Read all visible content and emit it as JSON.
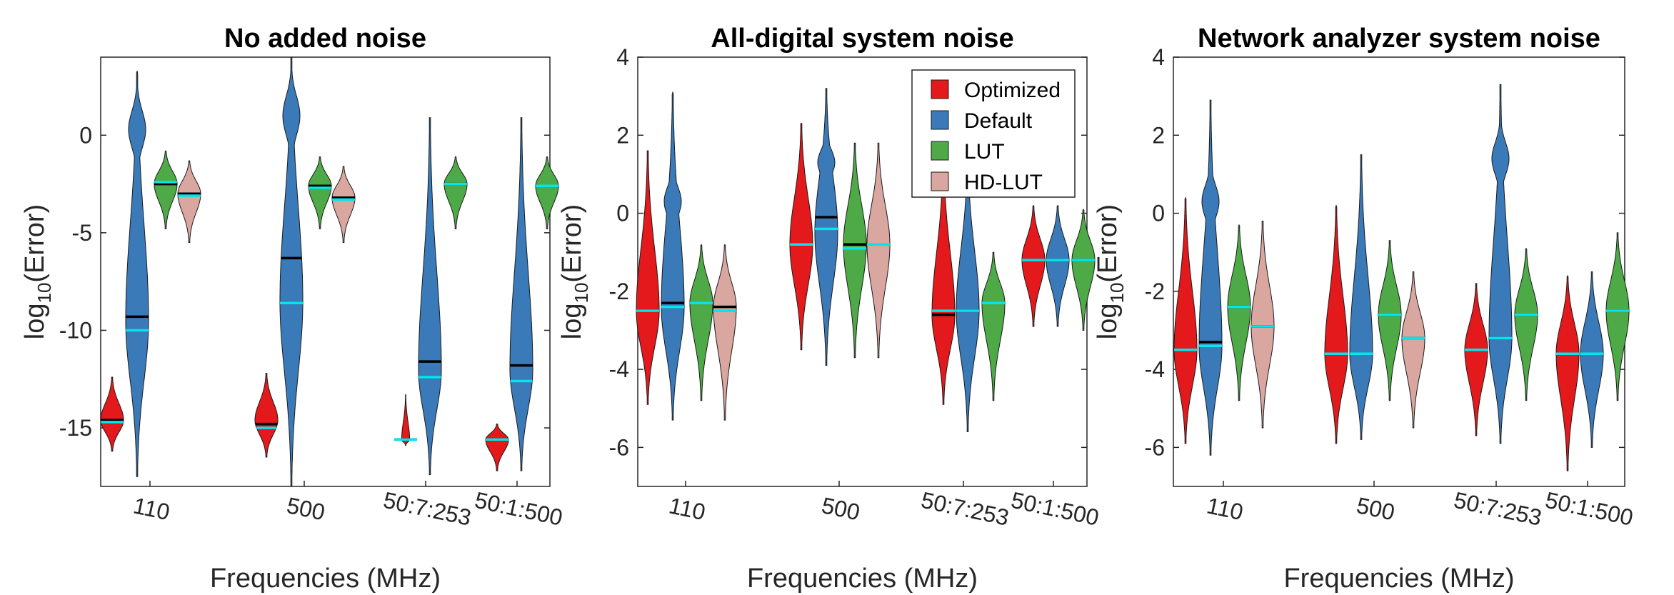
{
  "chart_data": [
    {
      "type": "violin",
      "title": "No added noise",
      "xlabel": "Frequencies (MHz)",
      "ylabel": "log10(Error)",
      "ylim": [
        -18,
        4
      ],
      "yticks": [
        0,
        -5,
        -10,
        -15
      ],
      "ytick_labels": [
        "0",
        "-5",
        "-10",
        "-15"
      ],
      "categories": [
        "110",
        "500",
        "50:7:253",
        "50:1:500"
      ],
      "colors": {
        "Optimized": "#e3191c",
        "Default": "#3a7ab8",
        "LUT": "#4daa47",
        "HD-LUT": "#d9a6a0"
      },
      "line_colors": {
        "mean": "#000000",
        "median": "#00e5ee"
      },
      "series": [
        {
          "name": "Optimized",
          "violins": [
            {
              "min": -16.2,
              "max": -12.4,
              "mode": -14.6,
              "mean": -14.6,
              "median": -14.7
            },
            {
              "min": -16.5,
              "max": -12.2,
              "mode": -14.6,
              "mean": -14.8,
              "median": -15.0
            },
            {
              "min": -15.9,
              "max": -13.3,
              "mode": -15.6,
              "mean": -15.6,
              "median": -15.6,
              "narrow": true
            },
            {
              "min": -17.2,
              "max": -14.8,
              "mode": -15.6,
              "mean": -15.6,
              "median": -15.6
            }
          ]
        },
        {
          "name": "Default",
          "violins": [
            {
              "min": -17.5,
              "max": 3.3,
              "mode": -9.5,
              "mean": -9.3,
              "median": -10.0,
              "secondary_peak": 0.3
            },
            {
              "min": -18.0,
              "max": 4.0,
              "mode": -8.5,
              "mean": -6.3,
              "median": -8.6,
              "secondary_peak": 1.0
            },
            {
              "min": -17.4,
              "max": 0.9,
              "mode": -12.0,
              "mean": -11.6,
              "median": -12.4
            },
            {
              "min": -17.2,
              "max": 0.9,
              "mode": -12.0,
              "mean": -11.8,
              "median": -12.6
            }
          ]
        },
        {
          "name": "LUT",
          "violins": [
            {
              "min": -4.8,
              "max": -0.8,
              "mode": -2.5,
              "mean": -2.5,
              "median": -2.4
            },
            {
              "min": -4.8,
              "max": -1.1,
              "mode": -2.6,
              "mean": -2.6,
              "median": -2.7
            },
            {
              "min": -4.8,
              "max": -1.1,
              "mode": -2.5,
              "mean": -2.5,
              "median": -2.5
            },
            {
              "min": -4.8,
              "max": -1.1,
              "mode": -2.6,
              "mean": -2.6,
              "median": -2.6
            }
          ]
        },
        {
          "name": "HD-LUT",
          "violins": [
            {
              "min": -5.5,
              "max": -1.3,
              "mode": -3.0,
              "mean": -3.0,
              "median": -3.1
            },
            {
              "min": -5.5,
              "max": -1.6,
              "mode": -3.2,
              "mean": -3.2,
              "median": -3.3
            },
            null,
            null
          ]
        }
      ]
    },
    {
      "type": "violin",
      "title": "All-digital system noise",
      "xlabel": "Frequencies (MHz)",
      "ylabel": "log10(Error)",
      "ylim": [
        -7,
        4
      ],
      "yticks": [
        4,
        2,
        0,
        -2,
        -4,
        -6
      ],
      "ytick_labels": [
        "4",
        "2",
        "0",
        "-2",
        "-4",
        "-6"
      ],
      "categories": [
        "110",
        "500",
        "50:7:253",
        "50:1:500"
      ],
      "legend": {
        "position": "top-right",
        "entries": [
          "Optimized",
          "Default",
          "LUT",
          "HD-LUT"
        ]
      },
      "series": [
        {
          "name": "Optimized",
          "violins": [
            {
              "min": -4.9,
              "max": 1.6,
              "mode": -2.5,
              "mean": -2.5,
              "median": -2.5
            },
            {
              "min": -3.5,
              "max": 2.3,
              "mode": -0.8,
              "mean": -0.8,
              "median": -0.8
            },
            {
              "min": -4.9,
              "max": 1.5,
              "mode": -2.6,
              "mean": -2.6,
              "median": -2.5
            },
            {
              "min": -2.9,
              "max": 0.2,
              "mode": -1.2,
              "mean": -1.2,
              "median": -1.2
            }
          ]
        },
        {
          "name": "Default",
          "violins": [
            {
              "min": -5.3,
              "max": 3.1,
              "mode": -2.4,
              "mean": -2.3,
              "median": -2.4,
              "secondary_peak": 0.3
            },
            {
              "min": -3.9,
              "max": 3.2,
              "mode": -0.5,
              "mean": -0.1,
              "median": -0.4,
              "secondary_peak": 1.3
            },
            {
              "min": -5.6,
              "max": 1.5,
              "mode": -2.5,
              "mean": -2.5,
              "median": -2.5
            },
            {
              "min": -2.9,
              "max": 0.2,
              "mode": -1.2,
              "mean": -1.2,
              "median": -1.2
            }
          ]
        },
        {
          "name": "LUT",
          "violins": [
            {
              "min": -4.8,
              "max": -0.8,
              "mode": -2.3,
              "mean": -2.3,
              "median": -2.3
            },
            {
              "min": -3.7,
              "max": 1.8,
              "mode": -0.8,
              "mean": -0.8,
              "median": -0.9
            },
            {
              "min": -4.8,
              "max": -1.0,
              "mode": -2.3,
              "mean": -2.3,
              "median": -2.3
            },
            {
              "min": -3.0,
              "max": 0.1,
              "mode": -1.2,
              "mean": -1.2,
              "median": -1.2
            }
          ]
        },
        {
          "name": "HD-LUT",
          "violins": [
            {
              "min": -5.3,
              "max": -0.8,
              "mode": -2.4,
              "mean": -2.4,
              "median": -2.5
            },
            {
              "min": -3.7,
              "max": 1.8,
              "mode": -0.8,
              "mean": -0.8,
              "median": -0.8
            },
            null,
            null
          ]
        }
      ]
    },
    {
      "type": "violin",
      "title": "Network analyzer system noise",
      "xlabel": "Frequencies (MHz)",
      "ylabel": "log10(Error)",
      "ylim": [
        -7,
        4
      ],
      "yticks": [
        4,
        2,
        0,
        -2,
        -4,
        -6
      ],
      "ytick_labels": [
        "4",
        "2",
        "0",
        "-2",
        "-4",
        "-6"
      ],
      "categories": [
        "110",
        "500",
        "50:7:253",
        "50:1:500"
      ],
      "series": [
        {
          "name": "Optimized",
          "violins": [
            {
              "min": -5.9,
              "max": 0.4,
              "mode": -3.5,
              "mean": -3.5,
              "median": -3.5
            },
            {
              "min": -5.9,
              "max": 0.2,
              "mode": -3.6,
              "mean": -3.6,
              "median": -3.6
            },
            {
              "min": -5.7,
              "max": -1.8,
              "mode": -3.5,
              "mean": -3.5,
              "median": -3.5
            },
            {
              "min": -6.6,
              "max": -1.6,
              "mode": -3.6,
              "mean": -3.6,
              "median": -3.6
            }
          ]
        },
        {
          "name": "Default",
          "violins": [
            {
              "min": -6.2,
              "max": 2.9,
              "mode": -3.4,
              "mean": -3.3,
              "median": -3.4,
              "secondary_peak": 0.3
            },
            {
              "min": -5.8,
              "max": 1.5,
              "mode": -3.6,
              "mean": -3.6,
              "median": -3.6
            },
            {
              "min": -5.9,
              "max": 3.3,
              "mode": -3.2,
              "mean": -3.2,
              "median": -3.2,
              "secondary_peak": 1.4
            },
            {
              "min": -6.0,
              "max": -1.5,
              "mode": -3.6,
              "mean": -3.6,
              "median": -3.6
            }
          ]
        },
        {
          "name": "LUT",
          "violins": [
            {
              "min": -4.8,
              "max": -0.3,
              "mode": -2.4,
              "mean": -2.4,
              "median": -2.4
            },
            {
              "min": -4.8,
              "max": -0.7,
              "mode": -2.6,
              "mean": -2.6,
              "median": -2.6
            },
            {
              "min": -4.8,
              "max": -0.9,
              "mode": -2.6,
              "mean": -2.6,
              "median": -2.6
            },
            {
              "min": -4.8,
              "max": -0.5,
              "mode": -2.5,
              "mean": -2.5,
              "median": -2.5
            }
          ]
        },
        {
          "name": "HD-LUT",
          "violins": [
            {
              "min": -5.5,
              "max": -0.2,
              "mode": -2.9,
              "mean": -2.9,
              "median": -2.9
            },
            {
              "min": -5.5,
              "max": -1.5,
              "mode": -3.2,
              "mean": -3.2,
              "median": -3.2
            },
            null,
            null
          ]
        }
      ]
    }
  ]
}
